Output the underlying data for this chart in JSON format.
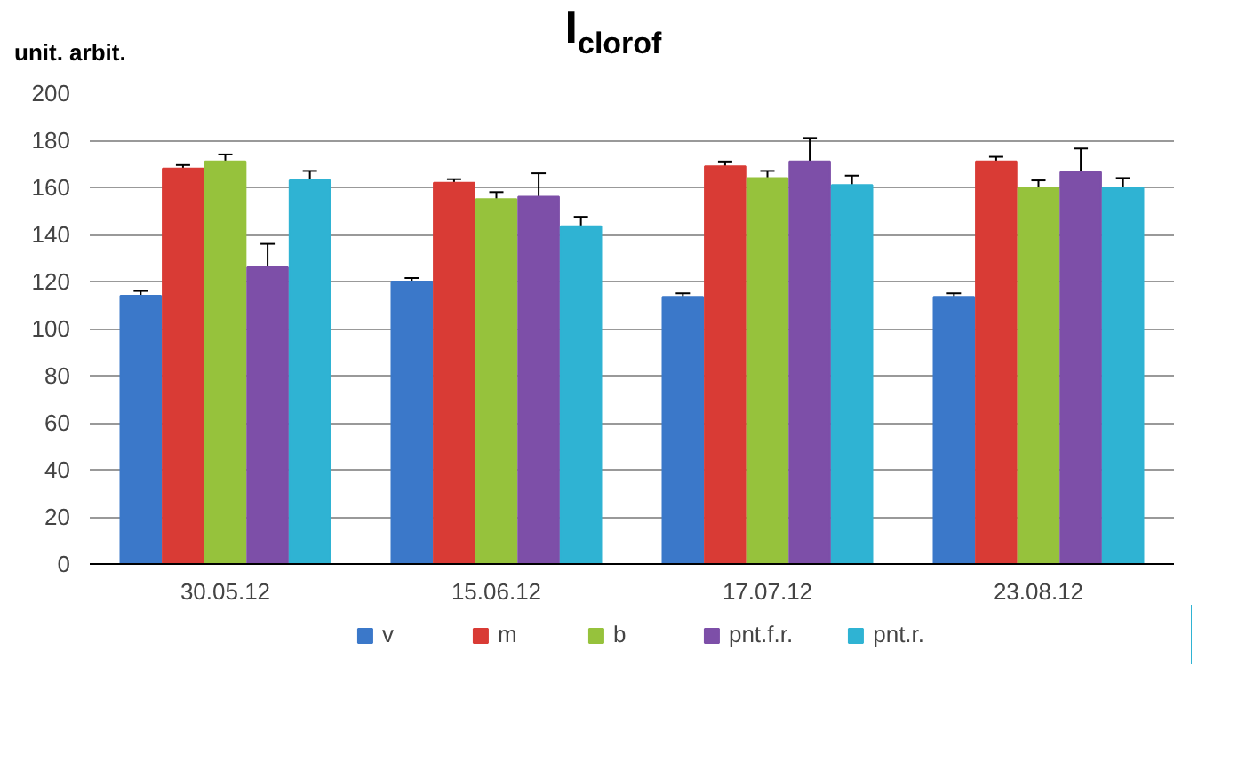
{
  "chart_data": {
    "type": "bar",
    "title": "I$_{clorof}$",
    "ylabel": "unit. arbit.",
    "categories": [
      "30.05.12",
      "15.06.12",
      "17.07.12",
      "23.08.12"
    ],
    "ylim": [
      0,
      200
    ],
    "yticks": [
      0,
      20,
      40,
      60,
      80,
      100,
      120,
      140,
      160,
      180,
      200
    ],
    "grid": "y",
    "legend": "bottom",
    "series": [
      {
        "name": "v",
        "color": "#3b78c9",
        "values": [
          114,
          120,
          113.5,
          113.5
        ],
        "errors": [
          2,
          1.5,
          1.5,
          1.5
        ]
      },
      {
        "name": "m",
        "color": "#d93b35",
        "values": [
          168,
          162,
          169,
          171
        ],
        "errors": [
          1.5,
          1.5,
          2,
          2
        ]
      },
      {
        "name": "b",
        "color": "#96c23c",
        "values": [
          171,
          155,
          164,
          160
        ],
        "errors": [
          3,
          3,
          3,
          3
        ]
      },
      {
        "name": "pnt.f.r.",
        "color": "#7d4fa8",
        "values": [
          126,
          156,
          171,
          166.5
        ],
        "errors": [
          10,
          10,
          10,
          10
        ]
      },
      {
        "name": "pnt.r.",
        "color": "#2fb3d3",
        "values": [
          163,
          143.5,
          161,
          160
        ],
        "errors": [
          4,
          4,
          4,
          4
        ]
      }
    ]
  }
}
